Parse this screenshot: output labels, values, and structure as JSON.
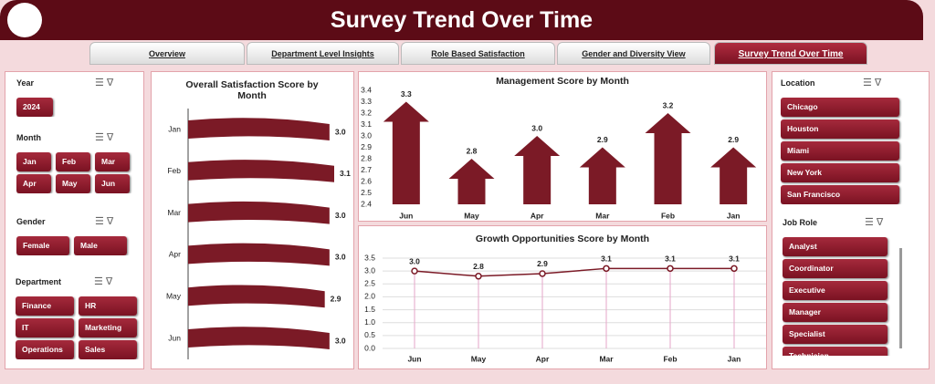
{
  "header": {
    "title": "Survey Trend Over Time"
  },
  "tabs": [
    "Overview",
    "Department Level Insights",
    "Role Based Satisfaction",
    "Gender and Diversity View",
    "Survey Trend Over Time"
  ],
  "active_tab": 4,
  "filters": {
    "year": {
      "label": "Year",
      "items": [
        "2024"
      ]
    },
    "month": {
      "label": "Month",
      "items": [
        "Jan",
        "Feb",
        "Mar",
        "Apr",
        "May",
        "Jun"
      ]
    },
    "gender": {
      "label": "Gender",
      "items": [
        "Female",
        "Male"
      ]
    },
    "department": {
      "label": "Department",
      "items": [
        "Finance",
        "HR",
        "IT",
        "Marketing",
        "Operations",
        "Sales"
      ]
    },
    "location": {
      "label": "Location",
      "items": [
        "Chicago",
        "Houston",
        "Miami",
        "New York",
        "San Francisco"
      ]
    },
    "job_role": {
      "label": "Job Role",
      "items": [
        "Analyst",
        "Coordinator",
        "Executive",
        "Manager",
        "Specialist",
        "Technician"
      ]
    }
  },
  "chart_data": [
    {
      "type": "bar",
      "orientation": "horizontal",
      "title": "Overall Satisfaction Score by Month",
      "categories": [
        "Jan",
        "Feb",
        "Mar",
        "Apr",
        "May",
        "Jun"
      ],
      "values": [
        3.0,
        3.1,
        3.0,
        3.0,
        2.9,
        3.0
      ],
      "value_labels": [
        "3.0",
        "3.1",
        "3.0",
        "3.0",
        "2.9",
        "3.0"
      ],
      "color": "#7b1a26"
    },
    {
      "type": "bar",
      "title": "Management Score by Month",
      "categories": [
        "Jun",
        "May",
        "Apr",
        "Mar",
        "Feb",
        "Jan"
      ],
      "values": [
        3.3,
        2.8,
        3.0,
        2.9,
        3.2,
        2.9
      ],
      "value_labels": [
        "3.3",
        "2.8",
        "3.0",
        "2.9",
        "3.2",
        "2.9"
      ],
      "color": "#7b1a26",
      "ylim": [
        2.4,
        3.4
      ],
      "yticks": [
        2.4,
        2.5,
        2.6,
        2.7,
        2.8,
        2.9,
        {
          "value": 3,
          "label": "3.0"
        },
        3.1,
        3.2,
        3.3,
        3.4
      ],
      "grid": false
    },
    {
      "type": "line",
      "title": "Growth Opportunities Score by Month",
      "categories": [
        "Jun",
        "May",
        "Apr",
        "Mar",
        "Feb",
        "Jan"
      ],
      "values": [
        3.0,
        2.8,
        2.9,
        3.1,
        3.1,
        3.1
      ],
      "value_labels": [
        "3.0",
        "2.8",
        "2.9",
        "3.1",
        "3.1",
        "3.1"
      ],
      "color": "#7b1a26",
      "ylim": [
        0,
        3.5
      ],
      "yticks": [
        {
          "value": 0,
          "label": "0.0"
        },
        0.5,
        {
          "value": 1,
          "label": "1.0"
        },
        1.5,
        {
          "value": 2,
          "label": "2.0"
        },
        2.5,
        {
          "value": 3,
          "label": "3.0"
        },
        3.5
      ],
      "grid": true
    }
  ]
}
